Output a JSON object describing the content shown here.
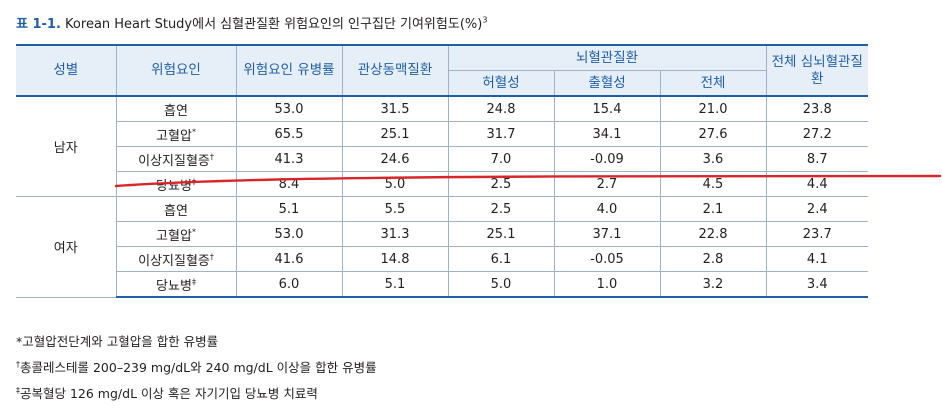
{
  "caption": {
    "number": "표 1-1.",
    "text": " Korean Heart Study에서 심혈관질환 위험요인의 인구집단 기여위험도(%)",
    "ref": "3"
  },
  "header": {
    "sex": "성별",
    "risk_factor": "위험요인",
    "prevalence": "위험요인 유병률",
    "coronary": "관상동맥질환",
    "cerebrovascular": "뇌혈관질환",
    "ischemic": "허혈성",
    "hemorrhagic": "출혈성",
    "cv_total": "전체",
    "total_cvd": "전체 심뇌혈관질환"
  },
  "groups": [
    {
      "sex": "남자",
      "rows": [
        {
          "factor": "흡연",
          "mark": "",
          "prevalence": "53.0",
          "coronary": "31.5",
          "ischemic": "24.8",
          "hemorrhagic": "15.4",
          "cv_total": "21.0",
          "total": "23.8"
        },
        {
          "factor": "고혈압",
          "mark": "*",
          "prevalence": "65.5",
          "coronary": "25.1",
          "ischemic": "31.7",
          "hemorrhagic": "34.1",
          "cv_total": "27.6",
          "total": "27.2"
        },
        {
          "factor": "이상지질혈증",
          "mark": "†",
          "prevalence": "41.3",
          "coronary": "24.6",
          "ischemic": "7.0",
          "hemorrhagic": "-0.09",
          "cv_total": "3.6",
          "total": "8.7"
        },
        {
          "factor": "당뇨병",
          "mark": "‡",
          "prevalence": "8.4",
          "coronary": "5.0",
          "ischemic": "2.5",
          "hemorrhagic": "2.7",
          "cv_total": "4.5",
          "total": "4.4"
        }
      ]
    },
    {
      "sex": "여자",
      "rows": [
        {
          "factor": "흡연",
          "mark": "",
          "prevalence": "5.1",
          "coronary": "5.5",
          "ischemic": "2.5",
          "hemorrhagic": "4.0",
          "cv_total": "2.1",
          "total": "2.4"
        },
        {
          "factor": "고혈압",
          "mark": "*",
          "prevalence": "53.0",
          "coronary": "31.3",
          "ischemic": "25.1",
          "hemorrhagic": "37.1",
          "cv_total": "22.8",
          "total": "23.7"
        },
        {
          "factor": "이상지질혈증",
          "mark": "†",
          "prevalence": "41.6",
          "coronary": "14.8",
          "ischemic": "6.1",
          "hemorrhagic": "-0.05",
          "cv_total": "2.8",
          "total": "4.1"
        },
        {
          "factor": "당뇨병",
          "mark": "‡",
          "prevalence": "6.0",
          "coronary": "5.1",
          "ischemic": "5.0",
          "hemorrhagic": "1.0",
          "cv_total": "3.2",
          "total": "3.4"
        }
      ]
    }
  ],
  "footnotes": [
    {
      "mark": "*",
      "text": "고혈압전단계와 고혈압을 합한 유병률"
    },
    {
      "mark": "†",
      "text": "총콜레스테롤 200–239 mg/dL와 240 mg/dL 이상을 합한 유병률"
    },
    {
      "mark": "‡",
      "text": "공복혈당 126 mg/dL 이상 혹은 자기기입 당뇨병 치료력"
    }
  ],
  "colors": {
    "accent": "#1f5fa8",
    "header_bg": "#e6eef7",
    "annotation": "#d9262b"
  }
}
